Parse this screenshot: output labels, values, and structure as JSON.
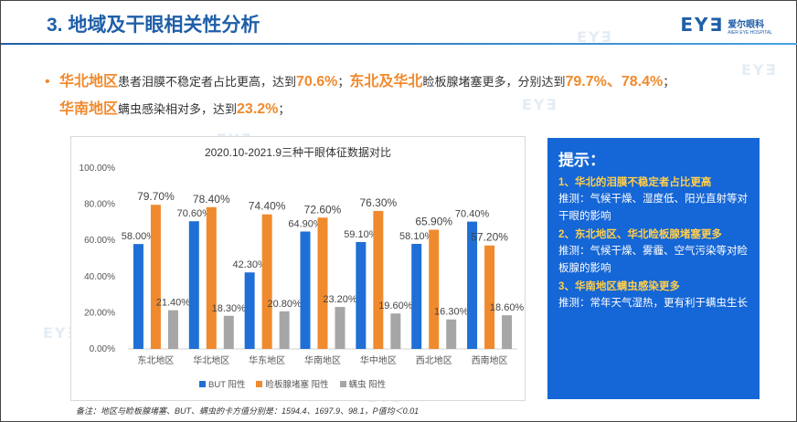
{
  "header": {
    "title": "3. 地域及干眼相关性分析",
    "logo_mark": "EY∃",
    "logo_cn": "爱尔眼科",
    "logo_en": "AIER EYE HOSPITAL"
  },
  "summary": {
    "r1_hl": "华北地区",
    "r1_text": "患者泪膜不稳定者占比更高，达到",
    "r1_val": "70.6%",
    "sep1": "；",
    "r2_hl": "东北及华北",
    "r2_text": "睑板腺堵塞更多，分别达到",
    "r2_val": "79.7%、78.4%",
    "sep2": "；",
    "r3_hl": "华南地区",
    "r3_text": "螨虫感染相对多，达到",
    "r3_val": "23.2%",
    "sep3": "；"
  },
  "chart_data": {
    "type": "bar",
    "title": "2020.10-2021.9三种干眼体征数据对比",
    "categories": [
      "东北地区",
      "华北地区",
      "华东地区",
      "华南地区",
      "华中地区",
      "西北地区",
      "西南地区"
    ],
    "series": [
      {
        "name": "BUT 阳性",
        "color": "#1f6fd6",
        "values": [
          58.0,
          70.6,
          42.3,
          64.9,
          59.1,
          58.1,
          70.4
        ],
        "labels": [
          "58.00%",
          "70.60%",
          "42.30%",
          "64.90%",
          "59.10%",
          "58.10%",
          "70.40%"
        ]
      },
      {
        "name": "睑板腺堵塞 阳性",
        "color": "#f08a2e",
        "values": [
          79.7,
          78.4,
          74.4,
          72.6,
          76.3,
          65.9,
          57.2
        ],
        "labels": [
          "79.70%",
          "78.40%",
          "74.40%",
          "72.60%",
          "76.30%",
          "65.90%",
          "57.20%"
        ]
      },
      {
        "name": "螨虫 阳性",
        "color": "#a6a6a6",
        "values": [
          21.4,
          18.3,
          20.8,
          23.2,
          19.6,
          16.3,
          18.6
        ],
        "labels": [
          "21.40%",
          "18.30%",
          "20.80%",
          "23.20%",
          "19.60%",
          "16.30%",
          "18.60%"
        ]
      }
    ],
    "ylim": [
      0,
      100
    ],
    "yticks": [
      "0.00%",
      "20.00%",
      "40.00%",
      "60.00%",
      "80.00%",
      "100.00%"
    ],
    "legend_position": "bottom",
    "grid": false
  },
  "tips": {
    "heading": "提示：",
    "items": [
      {
        "q": "1、华北的泪膜不稳定者占比更高",
        "a": "推测：气候干燥、湿度低、阳光直射等对干眼的影响"
      },
      {
        "q": "2、东北地区、华北睑板腺堵塞更多",
        "a": "推测：气候干燥、雾霾、空气污染等对睑板腺的影响"
      },
      {
        "q": "3、华南地区螨虫感染更多",
        "a": "推测：常年天气湿热，更有利于螨虫生长"
      }
    ]
  },
  "note": "备注：地区与睑板腺堵塞、BUT、螨虫的卡方值分别是：1594.4、1697.9、98.1，P值均＜0.01"
}
